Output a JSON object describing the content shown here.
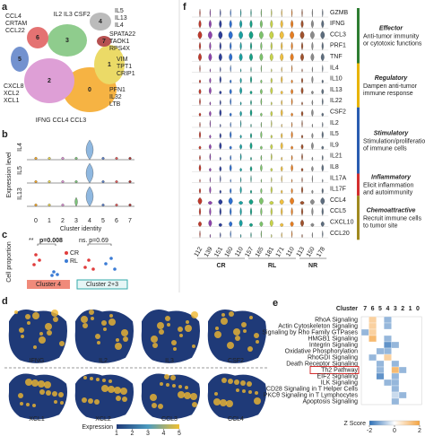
{
  "panels": {
    "a": {
      "label": "a",
      "clusters": [
        "0",
        "1",
        "2",
        "3",
        "4",
        "5",
        "6",
        "7"
      ],
      "gene_groups": [
        [
          "CCL4",
          "CRTAM",
          "CCL22"
        ],
        [
          "IL2 IL3 CSF2"
        ],
        [
          "IL5",
          "IL13",
          "IL4"
        ],
        [
          "SPATA22",
          "TAOK1",
          "RPS4X"
        ],
        [
          "VIM",
          "TPT1",
          "CRIP1"
        ],
        [
          "PFN1",
          "IL32",
          "LTB"
        ],
        [
          "IFNG CCL4 CCL3"
        ],
        [
          "CXCL8",
          "XCL2",
          "XCL1"
        ]
      ]
    },
    "b": {
      "label": "b",
      "ylabel": "Expression level",
      "xlabel": "Cluster identity",
      "genes": [
        "IL4",
        "IL5",
        "IL13"
      ],
      "xticks": [
        0,
        1,
        2,
        3,
        4,
        5,
        6,
        7
      ]
    },
    "c": {
      "label": "c",
      "ylabel": "Cell proportion",
      "sig1": "**",
      "p1": "p=0.008",
      "p2": "ns. p=0.69",
      "legend": [
        "CR",
        "RL"
      ],
      "groups": [
        "Cluster 4",
        "Cluster 2+3"
      ]
    },
    "d": {
      "label": "d",
      "genes": [
        "IFNG",
        "IL2",
        "IL3",
        "CSF2",
        "XCL1",
        "XCL2",
        "CCL3",
        "CCL4"
      ],
      "colorbar_label": "Expression",
      "colorbar_ticks": [
        1,
        2,
        3,
        4,
        5
      ]
    },
    "f": {
      "label": "f",
      "genes": [
        "GZMB",
        "IFNG",
        "CCL3",
        "PRF1",
        "TNF",
        "IL4",
        "IL10",
        "IL13",
        "IL22",
        "CSF2",
        "IL2",
        "IL5",
        "IL9",
        "IL21",
        "IL8",
        "IL17A",
        "IL17F",
        "CCL4",
        "CCL5",
        "CXCL10",
        "CCL20"
      ],
      "samples": [
        "112",
        "139",
        "151",
        "160",
        "110",
        "157",
        "165",
        "181",
        "171",
        "110",
        "113",
        "150",
        "178"
      ],
      "sample_groups": [
        "CR",
        "RL",
        "NR"
      ],
      "categories": [
        {
          "title": "Effector",
          "lines": [
            "Anti-tumor immunity",
            "or cytotoxic functions"
          ]
        },
        {
          "title": "Regulatory",
          "lines": [
            "Dampen anti-tumor",
            "immune response"
          ]
        },
        {
          "title": "Stimulatory",
          "lines": [
            "Stimulation/proliferation",
            "of immune cells"
          ]
        },
        {
          "title": "Inflammatory",
          "lines": [
            "Elicit inflammation",
            "and autoimmunity"
          ]
        },
        {
          "title": "Chemoattractive",
          "lines": [
            "Recruit immune cells",
            "to tumor site"
          ]
        }
      ]
    },
    "e": {
      "label": "e",
      "column_title": "Cluster",
      "columns": [
        "7",
        "6",
        "5",
        "4",
        "3",
        "2",
        "1",
        "0"
      ],
      "rows": [
        "RhoA Signaling",
        "Actin Cytoskeleton Signaling",
        "Signaling by Rho Family GTPases",
        "HMGB1 Signaling",
        "Integrin Signaling",
        "Oxidative Phosphorylation",
        "RhoGDI Signaling",
        "Death Receptor Signaling",
        "Th2 Pathway",
        "EIF2 Signaling",
        "ILK Signaling",
        "CD28 Signaling in T Helper Cells",
        "PKCθ Signaling in T Lymphocytes",
        "Apoptosis Signaling"
      ],
      "z": [
        [
          null,
          1,
          null,
          -1,
          null,
          null,
          null,
          null
        ],
        [
          null,
          1,
          null,
          -1,
          null,
          null,
          null,
          null
        ],
        [
          -1,
          1,
          null,
          null,
          null,
          null,
          null,
          null
        ],
        [
          null,
          1.5,
          null,
          -1,
          null,
          null,
          null,
          null
        ],
        [
          null,
          null,
          null,
          -1.5,
          -1,
          null,
          null,
          null
        ],
        [
          null,
          null,
          -1,
          -1,
          null,
          null,
          null,
          null
        ],
        [
          null,
          -1,
          null,
          1,
          null,
          null,
          null,
          null
        ],
        [
          null,
          null,
          -1,
          null,
          -1,
          null,
          null,
          null
        ],
        [
          null,
          null,
          -1,
          null,
          1.5,
          -1,
          null,
          null
        ],
        [
          null,
          null,
          -1.5,
          null,
          -1,
          null,
          null,
          null
        ],
        [
          null,
          null,
          null,
          -1,
          -1,
          null,
          null,
          null
        ],
        [
          null,
          null,
          null,
          null,
          -1,
          null,
          null,
          null
        ],
        [
          null,
          null,
          null,
          null,
          -0.5,
          -1,
          null,
          null
        ],
        [
          null,
          null,
          null,
          null,
          -1,
          null,
          null,
          null
        ]
      ],
      "zlim": [
        -2,
        2
      ],
      "colorbar_label": "Z Score",
      "colorbar_ticks": [
        -2,
        0,
        2
      ]
    }
  }
}
